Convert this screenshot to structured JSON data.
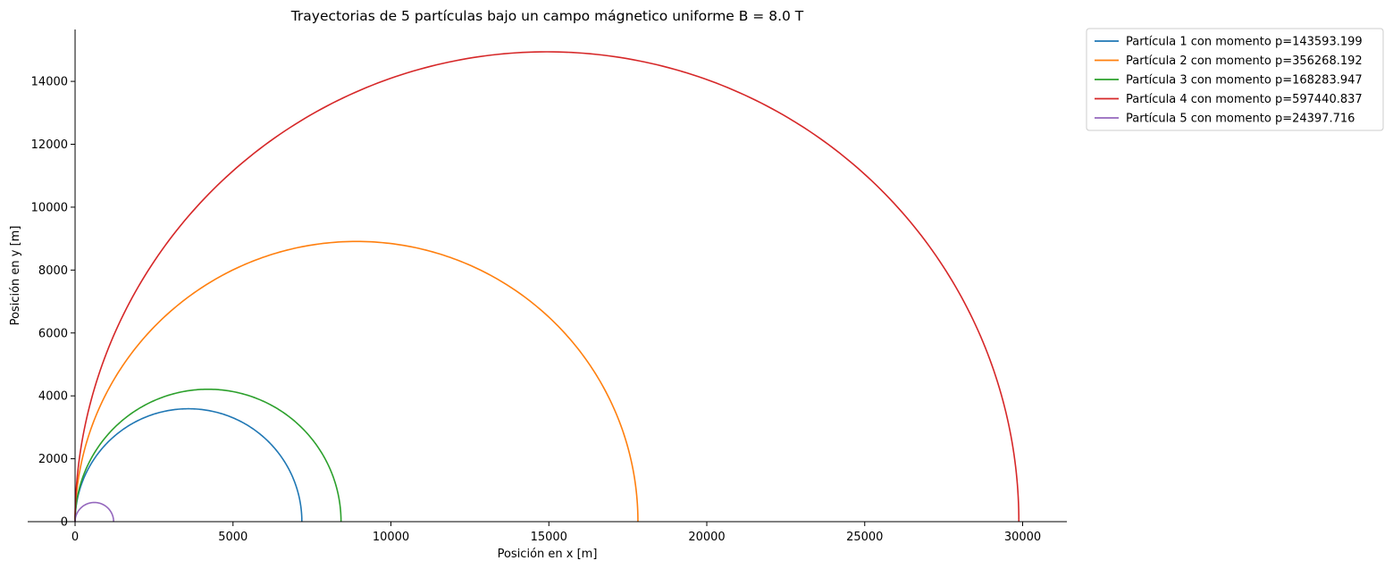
{
  "chart_data": {
    "type": "line",
    "title": "Trayectorias de 5 partículas bajo un campo mágnetico uniforme B = 8.0 T",
    "xlabel": "Posición en x [m]",
    "ylabel": "Posición en y [m]",
    "xlim": [
      -1500,
      31400
    ],
    "ylim": [
      0,
      15650
    ],
    "xticks": [
      0,
      5000,
      10000,
      15000,
      20000,
      25000,
      30000
    ],
    "xtick_labels": [
      "0",
      "5000",
      "10000",
      "15000",
      "20000",
      "25000",
      "30000"
    ],
    "yticks": [
      0,
      2000,
      4000,
      6000,
      8000,
      10000,
      12000,
      14000
    ],
    "ytick_labels": [
      "0",
      "2000",
      "4000",
      "6000",
      "8000",
      "10000",
      "12000",
      "14000"
    ],
    "grid": false,
    "legend_position": "outside-top-right",
    "series": [
      {
        "name": "Partícula 1 con momento p=143593.199",
        "color": "#1f77b4",
        "center_x": 3590,
        "radius": 3590
      },
      {
        "name": "Partícula 2 con momento p=356268.192",
        "color": "#ff7f0e",
        "center_x": 8910,
        "radius": 8910
      },
      {
        "name": "Partícula 3 con momento p=168283.947",
        "color": "#2ca02c",
        "center_x": 4210,
        "radius": 4210
      },
      {
        "name": "Partícula 4 con momento p=597440.837",
        "color": "#d62728",
        "center_x": 14940,
        "radius": 14940
      },
      {
        "name": "Partícula 5 con momento p=24397.716",
        "color": "#9467bd",
        "center_x": 610,
        "radius": 610
      }
    ]
  }
}
